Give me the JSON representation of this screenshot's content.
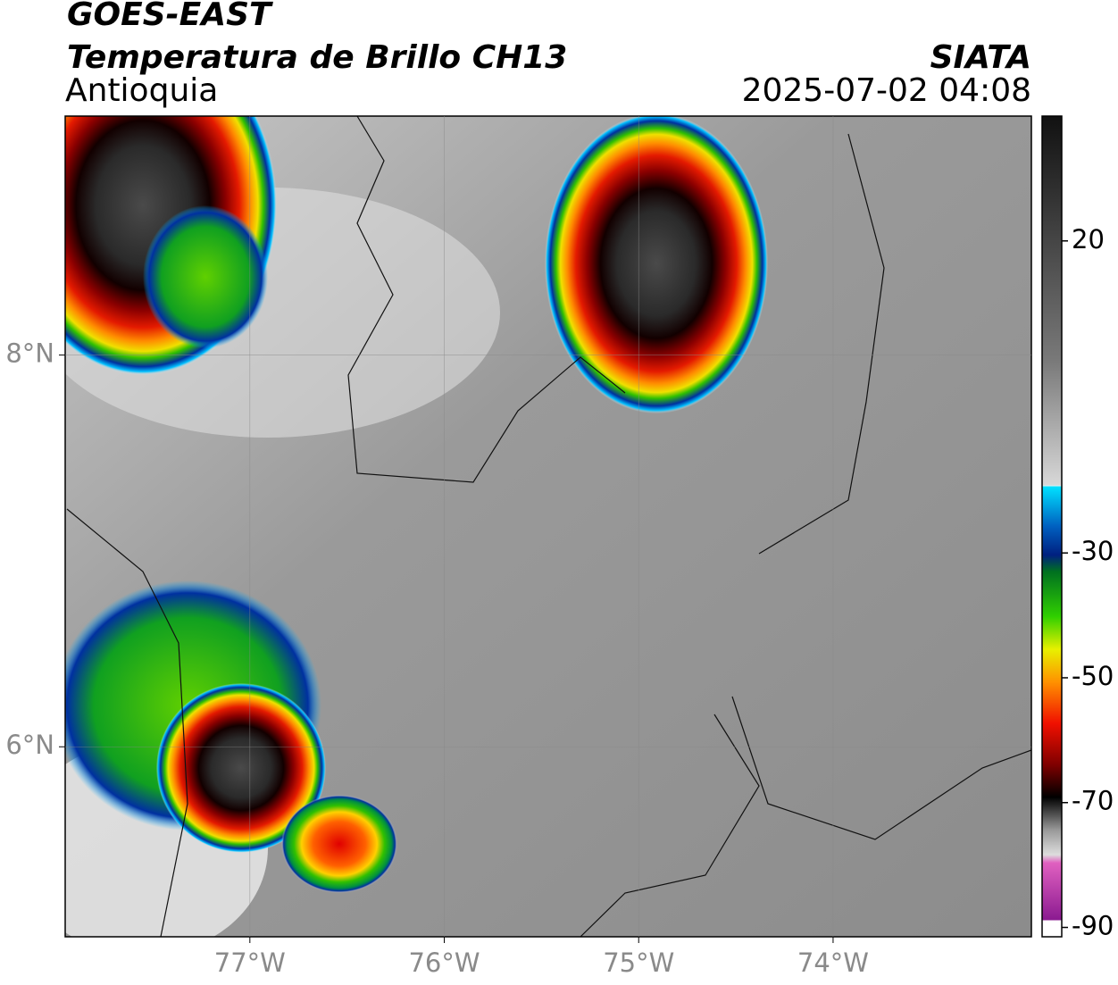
{
  "header": {
    "title": "GOES-EAST",
    "subtitle": "Temperatura de Brillo CH13",
    "region": "Antioquia",
    "source": "SIATA",
    "datetime": "2025-07-02 04:08"
  },
  "map": {
    "xlim": [
      -77.95,
      -72.98
    ],
    "ylim": [
      5.03,
      9.22
    ],
    "xticks": [
      {
        "value": -77,
        "label": "77°W"
      },
      {
        "value": -76,
        "label": "76°W"
      },
      {
        "value": -75,
        "label": "75°W"
      },
      {
        "value": -74,
        "label": "74°W"
      }
    ],
    "yticks": [
      {
        "value": 8,
        "label": "8°N"
      },
      {
        "value": 6,
        "label": "6°N"
      }
    ],
    "grid": true
  },
  "colorbar": {
    "lim": [
      -91.5,
      40
    ],
    "ticks": [
      20,
      -30,
      -50,
      -70,
      -90
    ]
  }
}
